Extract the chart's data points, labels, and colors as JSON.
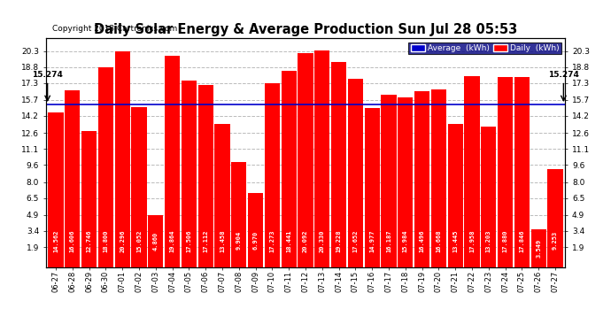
{
  "title": "Daily Solar Energy & Average Production Sun Jul 28 05:53",
  "copyright": "Copyright 2013 Cartronics.com",
  "categories": [
    "06-27",
    "06-28",
    "06-29",
    "06-30",
    "07-01",
    "07-02",
    "07-03",
    "07-04",
    "07-05",
    "07-06",
    "07-07",
    "07-08",
    "07-09",
    "07-10",
    "07-11",
    "07-12",
    "07-13",
    "07-14",
    "07-15",
    "07-16",
    "07-17",
    "07-18",
    "07-19",
    "07-20",
    "07-21",
    "07-22",
    "07-23",
    "07-24",
    "07-25",
    "07-26",
    "07-27"
  ],
  "values": [
    14.562,
    16.606,
    12.746,
    18.8,
    20.296,
    15.052,
    4.86,
    19.864,
    17.506,
    17.112,
    13.458,
    9.904,
    6.97,
    17.273,
    18.441,
    20.092,
    20.33,
    19.228,
    17.652,
    14.977,
    16.187,
    15.984,
    16.496,
    16.668,
    13.445,
    17.958,
    13.203,
    17.88,
    17.846,
    3.549,
    9.253
  ],
  "average": 15.274,
  "bar_color": "#FF0000",
  "avg_line_color": "#0000CC",
  "background_color": "#FFFFFF",
  "plot_bg_color": "#FFFFFF",
  "grid_color": "#BBBBBB",
  "title_color": "#000000",
  "label_color": "#FFFFFF",
  "yticks": [
    1.9,
    3.4,
    4.9,
    6.5,
    8.0,
    9.6,
    11.1,
    12.6,
    14.2,
    15.7,
    17.3,
    18.8,
    20.3
  ],
  "ymin": 0.0,
  "ymax": 21.5,
  "avg_label": "15.274",
  "legend_avg_color": "#0000CC",
  "legend_daily_color": "#FF0000"
}
